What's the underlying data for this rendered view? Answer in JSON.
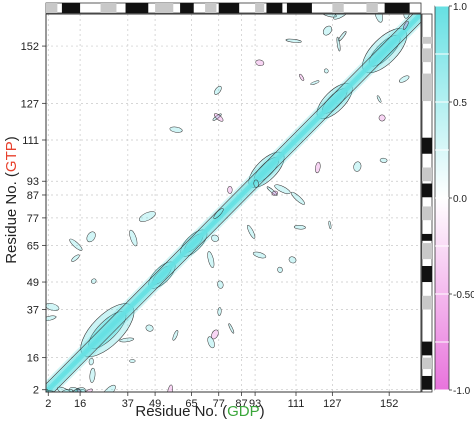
{
  "colors": {
    "positive": "#66e0e3",
    "negative": "#e873dc",
    "outline": "#333333",
    "panel_bg": "#ffffff",
    "grid": "#c8c8c8",
    "structure_dark": "#111111",
    "structure_light": "#c8c8c8",
    "gtp_label": "#e8402c",
    "gdp_label": "#3aa63a"
  },
  "chart_data": {
    "type": "heatmap",
    "subtype": "contour-map",
    "xlabel": {
      "prefix": "Residue No. (",
      "highlight": "GDP",
      "suffix": ")"
    },
    "ylabel": {
      "prefix": "Residue No. (",
      "highlight": "GTP",
      "suffix": ")"
    },
    "x_ticks": [
      2,
      16,
      37,
      49,
      65,
      77,
      87,
      93,
      111,
      127,
      152
    ],
    "y_ticks": [
      2,
      16,
      37,
      49,
      65,
      77,
      87,
      93,
      111,
      127,
      152
    ],
    "xlim": [
      1,
      166
    ],
    "ylim": [
      1,
      166
    ],
    "grid": true,
    "colorbar": {
      "ticks": [
        1.0,
        0.5,
        0.0,
        -0.5,
        -1.0
      ],
      "tick_labels": [
        "1.0",
        "0.5",
        "0.0",
        "-0.50",
        "-1.0"
      ],
      "range": [
        -1.0,
        1.0
      ],
      "levels": [
        -1.0,
        -0.75,
        -0.5,
        -0.25,
        0.0,
        0.25,
        0.5,
        0.75,
        1.0
      ],
      "placement": "right"
    },
    "diagonal_value": 1.0,
    "correlated_regions": [
      {
        "x": [
          46,
          58
        ],
        "y": [
          46,
          58
        ],
        "value": 0.6
      },
      {
        "x": [
          60,
          72
        ],
        "y": [
          60,
          72
        ],
        "value": 0.6
      },
      {
        "x": [
          90,
          106
        ],
        "y": [
          90,
          106
        ],
        "value": 0.5
      },
      {
        "x": [
          120,
          136
        ],
        "y": [
          120,
          136
        ],
        "value": 0.5
      },
      {
        "x": [
          140,
          160
        ],
        "y": [
          140,
          160
        ],
        "value": 0.5
      },
      {
        "x": [
          16,
          40
        ],
        "y": [
          16,
          40
        ],
        "value": 0.4
      }
    ],
    "secondary_structure_top": [
      {
        "start": 1,
        "end": 6,
        "type": "light"
      },
      {
        "start": 8,
        "end": 16,
        "type": "dark"
      },
      {
        "start": 25,
        "end": 32,
        "type": "light"
      },
      {
        "start": 36,
        "end": 46,
        "type": "dark"
      },
      {
        "start": 49,
        "end": 57,
        "type": "light"
      },
      {
        "start": 60,
        "end": 66,
        "type": "dark"
      },
      {
        "start": 71,
        "end": 76,
        "type": "light"
      },
      {
        "start": 77,
        "end": 86,
        "type": "dark"
      },
      {
        "start": 93,
        "end": 97,
        "type": "light"
      },
      {
        "start": 98,
        "end": 105,
        "type": "dark"
      },
      {
        "start": 107,
        "end": 118,
        "type": "dark"
      },
      {
        "start": 127,
        "end": 132,
        "type": "light"
      },
      {
        "start": 142,
        "end": 147,
        "type": "light"
      },
      {
        "start": 150,
        "end": 161,
        "type": "dark"
      }
    ],
    "secondary_structure_right": [
      {
        "start": 2,
        "end": 8,
        "type": "dark"
      },
      {
        "start": 11,
        "end": 16,
        "type": "light"
      },
      {
        "start": 17,
        "end": 23,
        "type": "dark"
      },
      {
        "start": 37,
        "end": 43,
        "type": "light"
      },
      {
        "start": 49,
        "end": 56,
        "type": "dark"
      },
      {
        "start": 59,
        "end": 66,
        "type": "light"
      },
      {
        "start": 67,
        "end": 70,
        "type": "dark"
      },
      {
        "start": 76,
        "end": 82,
        "type": "light"
      },
      {
        "start": 86,
        "end": 92,
        "type": "dark"
      },
      {
        "start": 93,
        "end": 99,
        "type": "light"
      },
      {
        "start": 105,
        "end": 112,
        "type": "dark"
      },
      {
        "start": 128,
        "end": 140,
        "type": "light"
      },
      {
        "start": 145,
        "end": 151,
        "type": "light"
      },
      {
        "start": 153,
        "end": 156,
        "type": "light"
      }
    ]
  }
}
